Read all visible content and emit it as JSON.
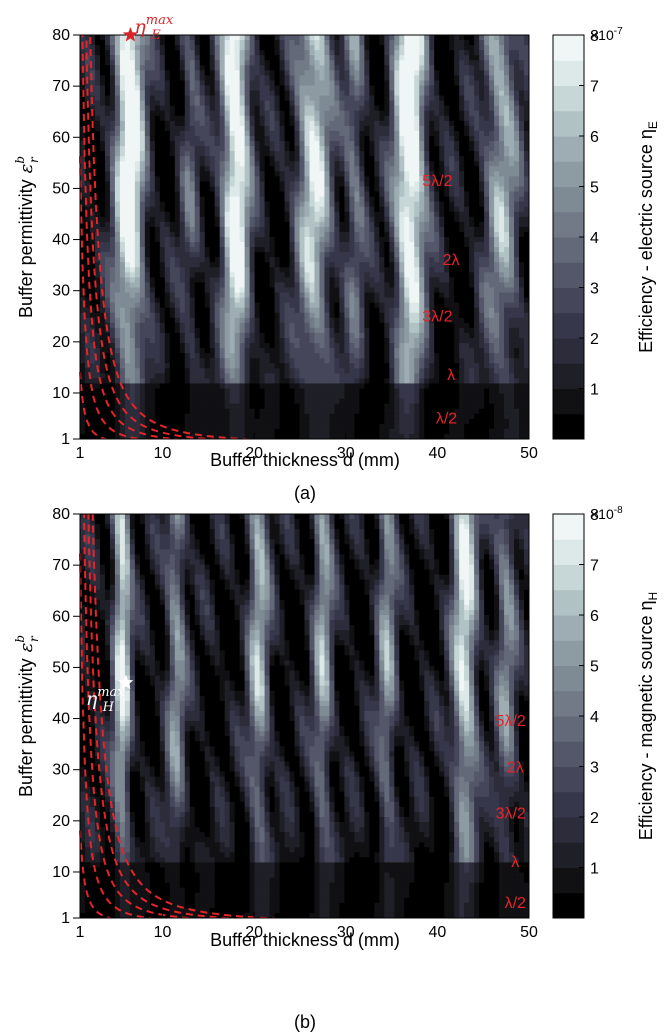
{
  "colors": {
    "curve": "#e8232a",
    "marker_a": "#d7262b",
    "marker_b": "#ffffff",
    "palette": [
      "#000000",
      "#111114",
      "#1f1f27",
      "#2c2c3a",
      "#37374b",
      "#45465a",
      "#545769",
      "#636978",
      "#717a86",
      "#7f8b94",
      "#8d9ba2",
      "#9eadb3",
      "#b1c2c4",
      "#c7d6d6",
      "#dde8e8",
      "#f0f6f6"
    ]
  },
  "chart_data": [
    {
      "type": "heatmap",
      "panel_tag": "(a)",
      "xlabel": "Buffer thickness d (mm)",
      "ylabel": "Buffer permittivity",
      "ylabel_symbol": "ε",
      "ylabel_sup": "b",
      "ylabel_sub": "r",
      "x_range": [
        1,
        50
      ],
      "y_range": [
        1,
        80
      ],
      "x_ticks": [
        "1",
        "10",
        "20",
        "30",
        "40",
        "50"
      ],
      "y_ticks": [
        "1",
        "10",
        "20",
        "30",
        "40",
        "50",
        "60",
        "70",
        "80"
      ],
      "colorbar": {
        "label": "Efficiency - electric source η",
        "label_sub": "E",
        "multiplier": "×10",
        "exponent": "-7",
        "ticks": [
          "1",
          "2",
          "3",
          "4",
          "5",
          "6",
          "7",
          "8"
        ],
        "range": [
          0,
          8
        ]
      },
      "curves": [
        {
          "label": "λ/2",
          "k": 0.5,
          "label_at": [
            41,
            4
          ]
        },
        {
          "label": "λ",
          "k": 1.0,
          "label_at": [
            41.5,
            12.5
          ]
        },
        {
          "label": "3λ/2",
          "k": 1.5,
          "label_at": [
            40,
            24
          ]
        },
        {
          "label": "2λ",
          "k": 2.0,
          "label_at": [
            41.5,
            35
          ]
        },
        {
          "label": "5λ/2",
          "k": 2.5,
          "label_at": [
            40,
            50.5
          ]
        }
      ],
      "curve_constant": 7.5,
      "hot_ridges": [
        {
          "x": 6.4,
          "w": 1.7,
          "amp": 8.2
        },
        {
          "x": 18.0,
          "w": 1.6,
          "amp": 8.0
        },
        {
          "x": 26.5,
          "w": 2.0,
          "amp": 6.3
        },
        {
          "x": 37.0,
          "w": 1.8,
          "amp": 8.3
        },
        {
          "x": 47.0,
          "w": 2.0,
          "amp": 5.0
        },
        {
          "x": 31.0,
          "w": 1.2,
          "amp": 3.4
        },
        {
          "x": 13.0,
          "w": 1.1,
          "amp": 2.6
        }
      ],
      "marker": {
        "label": "η",
        "label_sup": "max",
        "label_sub": "E",
        "x": 6.5,
        "y": 80
      }
    },
    {
      "type": "heatmap",
      "panel_tag": "(b)",
      "xlabel": "Buffer thickness d (mm)",
      "ylabel": "Buffer permittivity",
      "ylabel_symbol": "ε",
      "ylabel_sup": "b",
      "ylabel_sub": "r",
      "x_range": [
        1,
        50
      ],
      "y_range": [
        1,
        80
      ],
      "x_ticks": [
        "1",
        "10",
        "20",
        "30",
        "40",
        "50"
      ],
      "y_ticks": [
        "1",
        "10",
        "20",
        "30",
        "40",
        "50",
        "60",
        "70",
        "80"
      ],
      "colorbar": {
        "label": "Efficiency - magnetic source η",
        "label_sub": "H",
        "multiplier": "×10",
        "exponent": "-8",
        "ticks": [
          "1",
          "2",
          "3",
          "4",
          "5",
          "6",
          "7",
          "8"
        ],
        "range": [
          0,
          8
        ]
      },
      "curves": [
        {
          "label": "λ/2",
          "k": 0.5,
          "label_at": [
            48.5,
            3
          ]
        },
        {
          "label": "λ",
          "k": 1.0,
          "label_at": [
            48.5,
            11
          ]
        },
        {
          "label": "3λ/2",
          "k": 1.5,
          "label_at": [
            48,
            20.5
          ]
        },
        {
          "label": "2λ",
          "k": 2.0,
          "label_at": [
            48.5,
            29.5
          ]
        },
        {
          "label": "5λ/2",
          "k": 2.5,
          "label_at": [
            48,
            38.5
          ]
        }
      ],
      "curve_constant": 8.5,
      "hot_ridges": [
        {
          "x": 5.6,
          "w": 1.0,
          "amp": 6.5
        },
        {
          "x": 11.5,
          "w": 1.1,
          "amp": 4.2
        },
        {
          "x": 20.5,
          "w": 1.2,
          "amp": 5.0
        },
        {
          "x": 27.5,
          "w": 1.1,
          "amp": 4.6
        },
        {
          "x": 34.5,
          "w": 1.1,
          "amp": 4.2
        },
        {
          "x": 43.0,
          "w": 1.4,
          "amp": 6.5
        },
        {
          "x": 47.5,
          "w": 1.2,
          "amp": 3.8
        }
      ],
      "marker": {
        "label": "η",
        "label_sup": "max",
        "label_sub": "H",
        "x": 6.0,
        "y": 47
      }
    }
  ]
}
